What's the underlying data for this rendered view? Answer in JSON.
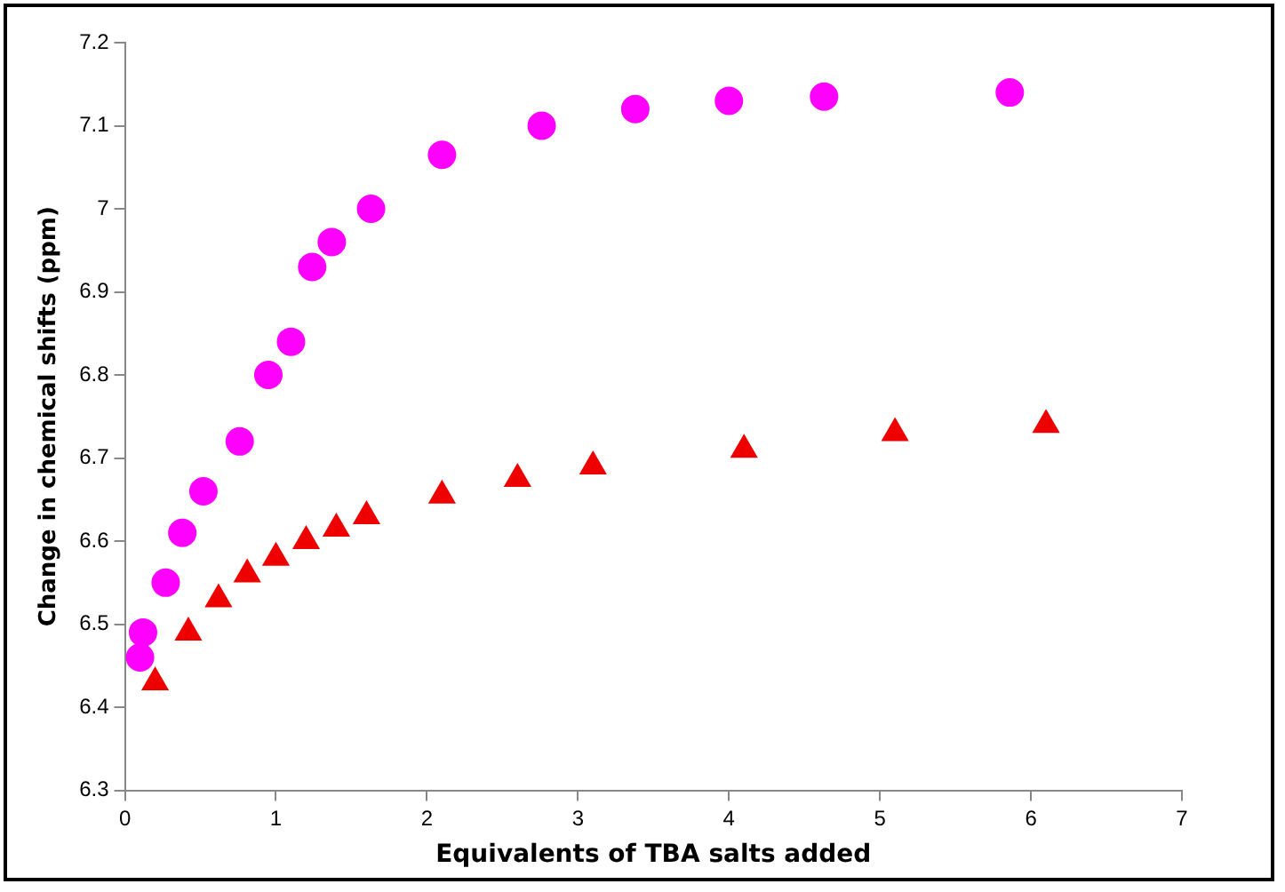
{
  "chart_data": {
    "type": "scatter",
    "xlabel": "Equivalents of TBA salts added",
    "ylabel": "Change in chemical shifts (ppm)",
    "xlim": [
      0,
      7
    ],
    "xticks": [
      0,
      1,
      2,
      3,
      4,
      5,
      6,
      7
    ],
    "ylim": [
      6.3,
      7.2
    ],
    "yticks": [
      6.3,
      6.4,
      6.5,
      6.6,
      6.7,
      6.8,
      6.9,
      7,
      7.1,
      7.2
    ],
    "grid": false,
    "legend": false,
    "series": [
      {
        "color": "#ff00ff",
        "marker": "circle",
        "x": [
          0.1,
          0.12,
          0.27,
          0.38,
          0.52,
          0.76,
          0.95,
          1.1,
          1.24,
          1.37,
          1.63,
          2.1,
          2.76,
          3.38,
          4.0,
          4.63,
          5.86
        ],
        "values": [
          6.46,
          6.49,
          6.55,
          6.61,
          6.66,
          6.72,
          6.8,
          6.84,
          6.93,
          6.96,
          7.0,
          7.065,
          7.1,
          7.12,
          7.13,
          7.135,
          7.14
        ]
      },
      {
        "color": "#ee0000",
        "marker": "triangle",
        "x": [
          0.2,
          0.42,
          0.62,
          0.81,
          1.0,
          1.2,
          1.4,
          1.6,
          2.1,
          2.6,
          3.1,
          4.1,
          5.1,
          6.1
        ],
        "values": [
          6.43,
          6.49,
          6.53,
          6.56,
          6.58,
          6.6,
          6.615,
          6.63,
          6.655,
          6.675,
          6.69,
          6.71,
          6.73,
          6.74
        ]
      }
    ]
  }
}
